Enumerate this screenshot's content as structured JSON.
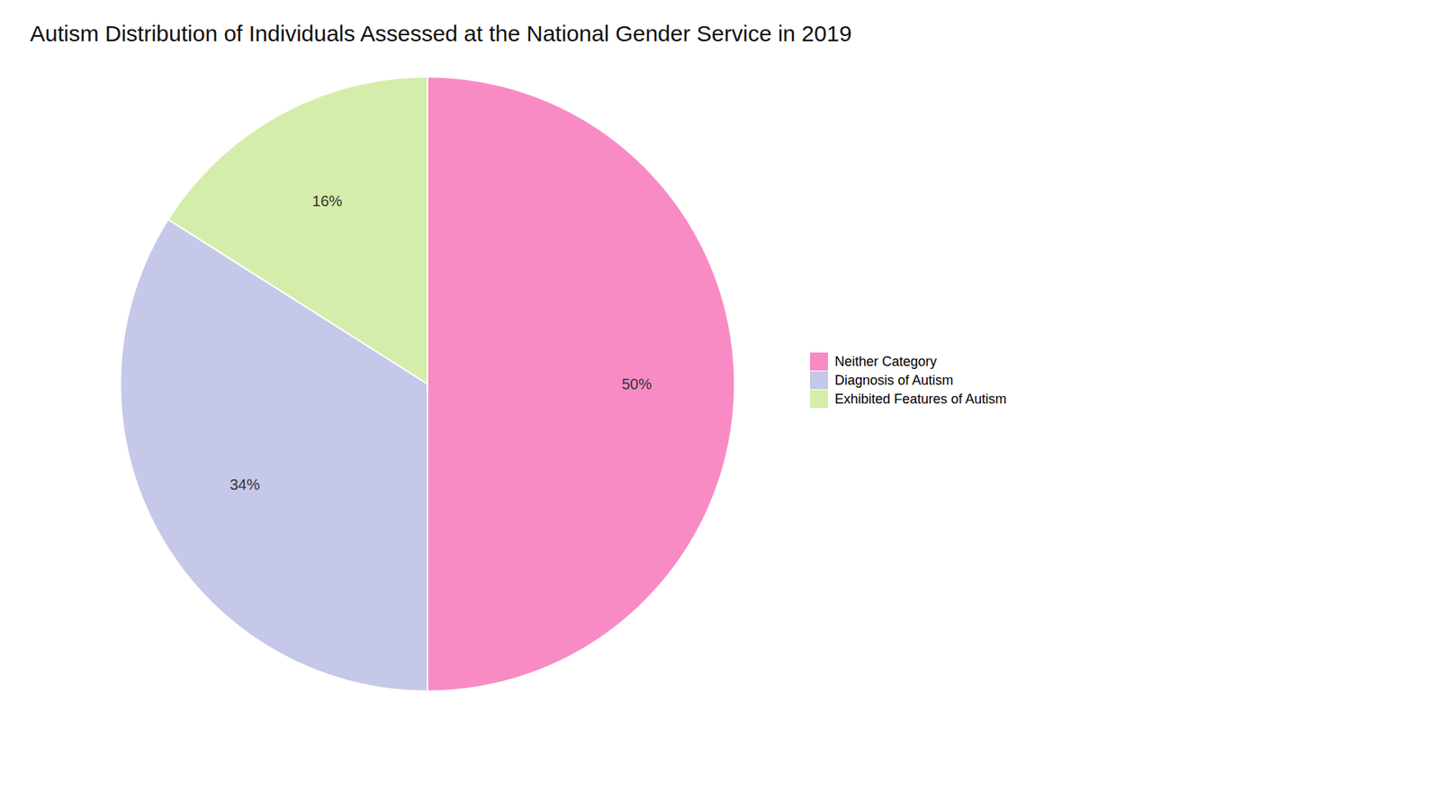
{
  "chart_data": {
    "type": "pie",
    "title": "Autism Distribution of Individuals Assessed at the National Gender Service in 2019",
    "categories": [
      "Neither Category",
      "Diagnosis of Autism",
      "Exhibited Features of Autism"
    ],
    "values": [
      50,
      34,
      16
    ],
    "value_labels": [
      "50%",
      "34%",
      "16%"
    ],
    "colors": [
      "#F98BC4",
      "#C5C8E8",
      "#D5EDAA"
    ],
    "data_labels": true,
    "legend": "right"
  }
}
